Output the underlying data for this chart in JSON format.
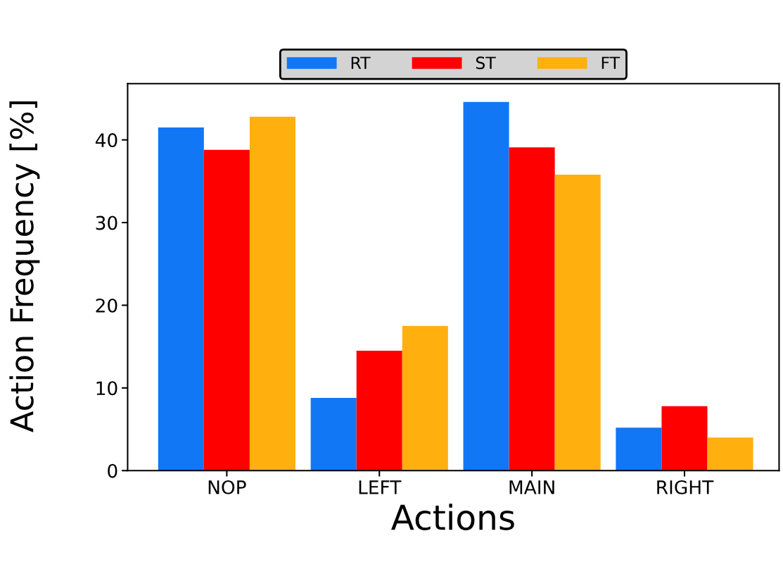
{
  "chart_data": {
    "type": "bar",
    "xlabel": "Actions",
    "ylabel": "Action Frequency [%]",
    "categories": [
      "NOP",
      "LEFT",
      "MAIN",
      "RIGHT"
    ],
    "series": [
      {
        "name": "RT",
        "color": "#1177f5",
        "values": [
          41.5,
          8.8,
          44.6,
          5.2
        ]
      },
      {
        "name": "ST",
        "color": "#ff0000",
        "values": [
          38.8,
          14.5,
          39.1,
          7.8
        ]
      },
      {
        "name": "FT",
        "color": "#ffb00f",
        "values": [
          42.8,
          17.5,
          35.8,
          4.0
        ]
      }
    ],
    "ylim": [
      0,
      46.8
    ],
    "yticks": [
      0,
      10,
      20,
      30,
      40
    ],
    "grid": false,
    "legend": "top"
  }
}
